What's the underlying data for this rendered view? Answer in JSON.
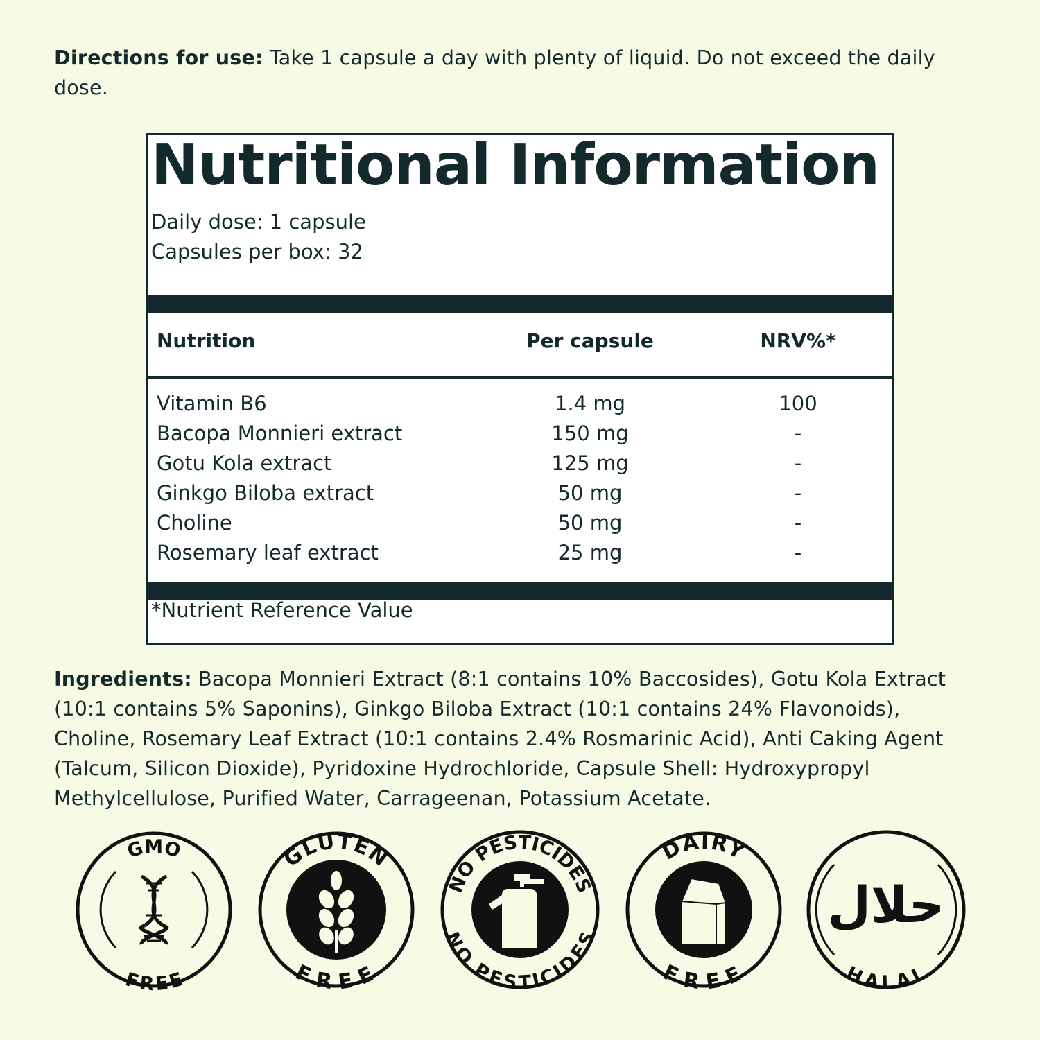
{
  "directions": {
    "label": "Directions for use:",
    "text": " Take 1 capsule a day with plenty of liquid. Do not exceed the daily dose."
  },
  "panel": {
    "title": "Nutritional Information",
    "daily_dose": "Daily dose: 1 capsule",
    "capsules_per_box": "Capsules per box: 32",
    "columns": [
      "Nutrition",
      "Per capsule",
      "NRV%*"
    ],
    "rows": [
      {
        "name": "Vitamin B6",
        "amount": "1.4 mg",
        "nrv": "100"
      },
      {
        "name": "Bacopa Monnieri extract",
        "amount": "150 mg",
        "nrv": "-"
      },
      {
        "name": "Gotu Kola extract",
        "amount": "125 mg",
        "nrv": "-"
      },
      {
        "name": "Ginkgo Biloba extract",
        "amount": "50 mg",
        "nrv": "-"
      },
      {
        "name": "Choline",
        "amount": "50 mg",
        "nrv": "-"
      },
      {
        "name": "Rosemary leaf extract",
        "amount": "25 mg",
        "nrv": "-"
      }
    ],
    "footnote": "*Nutrient Reference Value"
  },
  "ingredients": {
    "label": "Ingredients:",
    "text": " Bacopa Monnieri Extract (8:1 contains 10% Baccosides), Gotu Kola Extract (10:1 contains 5% Saponins), Ginkgo Biloba Extract (10:1 contains 24% Flavonoids), Choline, Rosemary Leaf Extract (10:1 contains 2.4% Rosmarinic Acid), Anti Caking Agent (Talcum, Silicon Dioxide), Pyridoxine Hydrochloride, Capsule Shell: Hydroxypropyl Methylcellulose, Purified Water, Carrageenan, Potassium Acetate."
  },
  "badges": [
    {
      "top": "GMO",
      "bottom": "FREE",
      "icon": "dna-icon"
    },
    {
      "top": "GLUTEN",
      "bottom": "FREE",
      "icon": "wheat-icon"
    },
    {
      "top": "NO PESTICIDES",
      "bottom": "NO PESTICIDES",
      "icon": "spray-bottle-icon"
    },
    {
      "top": "DAIRY",
      "bottom": "FREE",
      "icon": "milk-carton-icon"
    },
    {
      "top": "حلال",
      "bottom": "HALAL",
      "icon": "halal-icon"
    }
  ],
  "colors": {
    "background": "#f7fbe6",
    "ink": "#13292b",
    "panel": "#ffffff"
  }
}
